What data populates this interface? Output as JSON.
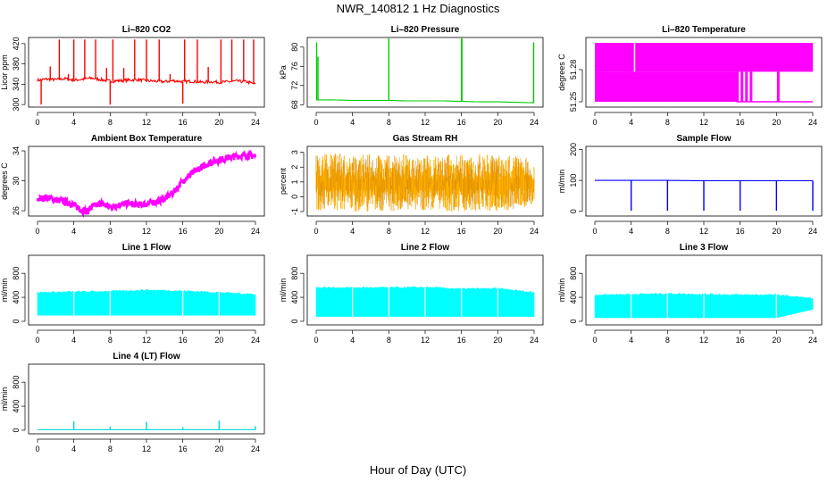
{
  "figure": {
    "title": "NWR_140812  1 Hz Diagnostics",
    "xlabel": "Hour of Day (UTC)"
  },
  "chart_data": [
    {
      "id": "co2",
      "type": "line",
      "title": "Li–820 CO2",
      "ylabel": "Licor ppm",
      "xlim": [
        0,
        24
      ],
      "xticks": [
        0,
        4,
        8,
        12,
        16,
        20,
        24
      ],
      "ylim": [
        295,
        432
      ],
      "yticks": [
        300,
        340,
        380,
        420
      ],
      "ytick_labels": [
        "300",
        "340",
        "380",
        "420"
      ],
      "color": "#ff0000",
      "fill": false,
      "series": [
        {
          "x": [
            0,
            1,
            2,
            3,
            4,
            5,
            6,
            7,
            8,
            9,
            10,
            11,
            12,
            13,
            14,
            15,
            16,
            17,
            18,
            19,
            20,
            21,
            22,
            23,
            24
          ],
          "y": [
            348,
            350,
            349,
            351,
            348,
            350,
            352,
            349,
            346,
            347,
            348,
            349,
            347,
            346,
            345,
            347,
            345,
            346,
            344,
            345,
            344,
            345,
            346,
            345,
            340
          ]
        }
      ],
      "spikes": [
        {
          "x": 0.4,
          "y": 300
        },
        {
          "x": 1.4,
          "y": 375
        },
        {
          "x": 2.4,
          "y": 428
        },
        {
          "x": 3.4,
          "y": 360
        },
        {
          "x": 4.0,
          "y": 428
        },
        {
          "x": 5.2,
          "y": 428
        },
        {
          "x": 6.4,
          "y": 428
        },
        {
          "x": 7.6,
          "y": 372
        },
        {
          "x": 8.0,
          "y": 300
        },
        {
          "x": 8.3,
          "y": 428
        },
        {
          "x": 9.5,
          "y": 372
        },
        {
          "x": 10.7,
          "y": 428
        },
        {
          "x": 12.0,
          "y": 428
        },
        {
          "x": 13.4,
          "y": 428
        },
        {
          "x": 14.6,
          "y": 360
        },
        {
          "x": 16.0,
          "y": 302
        },
        {
          "x": 16.2,
          "y": 428
        },
        {
          "x": 17.6,
          "y": 428
        },
        {
          "x": 18.8,
          "y": 374
        },
        {
          "x": 20.2,
          "y": 428
        },
        {
          "x": 21.4,
          "y": 428
        },
        {
          "x": 22.7,
          "y": 428
        },
        {
          "x": 23.8,
          "y": 428
        }
      ]
    },
    {
      "id": "pressure",
      "type": "line",
      "title": "Li–820 Pressure",
      "ylabel": "kPa",
      "xlim": [
        0,
        24
      ],
      "xticks": [
        0,
        4,
        8,
        12,
        16,
        20,
        24
      ],
      "ylim": [
        67.5,
        82
      ],
      "yticks": [
        68,
        72,
        76,
        80
      ],
      "ytick_labels": [
        "68",
        "72",
        "76",
        "80"
      ],
      "color": "#00cc00",
      "fill": false,
      "series": [
        {
          "x": [
            0,
            2,
            4,
            6,
            8,
            10,
            12,
            14,
            16,
            18,
            20,
            22,
            24
          ],
          "y": [
            69.0,
            69.0,
            68.9,
            68.9,
            68.9,
            68.8,
            68.8,
            68.8,
            68.7,
            68.6,
            68.6,
            68.5,
            68.4
          ]
        }
      ],
      "spikes": [
        {
          "x": 0.05,
          "y": 81
        },
        {
          "x": 0.2,
          "y": 78
        },
        {
          "x": 8.0,
          "y": 82
        },
        {
          "x": 16.0,
          "y": 82
        },
        {
          "x": 16.05,
          "y": 82
        },
        {
          "x": 23.95,
          "y": 81
        }
      ]
    },
    {
      "id": "licor-temp",
      "type": "area",
      "title": "Li–820 Temperature",
      "ylabel": "degrees C",
      "xlim": [
        0,
        24
      ],
      "xticks": [
        0,
        4,
        8,
        12,
        16,
        20,
        24
      ],
      "ylim": [
        51.245,
        51.31
      ],
      "yticks": [
        51.25,
        51.28
      ],
      "ytick_labels": [
        "51.25",
        "51.28"
      ],
      "color": "#ff00ff",
      "fill": true,
      "series": [
        {
          "x": [
            0,
            4.3,
            4.3,
            4.5,
            4.5,
            15.6,
            15.6,
            24
          ],
          "y_low": [
            51.25,
            51.25,
            51.25,
            51.25,
            51.25,
            51.25,
            51.25,
            51.25
          ],
          "y_high": [
            51.305,
            51.305,
            51.278,
            51.278,
            51.305,
            51.305,
            51.305,
            51.305
          ]
        }
      ],
      "partial": {
        "x_start": 15.6,
        "x_end": 24,
        "top_band": [
          51.278,
          51.305
        ]
      },
      "fragments": [
        {
          "x": 15.7,
          "y": 51.25
        },
        {
          "x": 16.2,
          "y": 51.25
        },
        {
          "x": 16.7,
          "y": 51.25
        },
        {
          "x": 17.2,
          "y": 51.25
        },
        {
          "x": 20.2,
          "y": 51.25
        }
      ]
    },
    {
      "id": "ambient-temp",
      "type": "line",
      "title": "Ambient Box Temperature",
      "ylabel": "degrees C",
      "xlim": [
        0,
        24
      ],
      "xticks": [
        0,
        4,
        8,
        12,
        16,
        20,
        24
      ],
      "ylim": [
        25.3,
        34.6
      ],
      "yticks": [
        26,
        30,
        34
      ],
      "ytick_labels": [
        "26",
        "30",
        "34"
      ],
      "colors": [
        "#ff00ff",
        "#ff00ff",
        "#ff00ff",
        "#ff00ff",
        "#ff00ff",
        "#ff00ff",
        "#ff00ff"
      ],
      "color": "#ff00ff",
      "fill": false,
      "thickness": 0.6,
      "series": [
        {
          "x": [
            0,
            1,
            2,
            3,
            4,
            5,
            5.5,
            6,
            7,
            8,
            9,
            10,
            11,
            12,
            13,
            14,
            15,
            16,
            17,
            18,
            19,
            20,
            21,
            22,
            23,
            24
          ],
          "y": [
            27.5,
            27.8,
            27.5,
            27.2,
            26.8,
            26.0,
            25.9,
            26.5,
            27.0,
            26.5,
            26.8,
            27.0,
            26.8,
            26.9,
            27.2,
            27.6,
            28.5,
            30.0,
            31.0,
            31.8,
            32.4,
            32.8,
            33.1,
            33.3,
            33.4,
            33.3
          ]
        }
      ]
    },
    {
      "id": "gas-rh",
      "type": "area",
      "title": "Gas Stream RH",
      "ylabel": "percent",
      "xlim": [
        0,
        24
      ],
      "xticks": [
        0,
        4,
        8,
        12,
        16,
        20,
        24
      ],
      "ylim": [
        -1.3,
        3.4
      ],
      "yticks": [
        -1,
        0,
        1,
        2,
        3
      ],
      "ytick_labels": [
        "-1",
        "0",
        "1",
        "2",
        "3"
      ],
      "color": "#ffb000",
      "fill": true,
      "noise": true,
      "series": [
        {
          "x": [
            0,
            2,
            4,
            6,
            8,
            10,
            12,
            14,
            16,
            18,
            20,
            22,
            24
          ],
          "y_low": [
            -0.9,
            -1.0,
            -1.0,
            -1.0,
            -1.0,
            -1.0,
            -0.9,
            -1.0,
            -1.0,
            -1.0,
            -1.0,
            -0.9,
            -0.5
          ],
          "y_high": [
            2.8,
            3.0,
            2.9,
            2.9,
            2.8,
            2.9,
            2.8,
            2.9,
            2.8,
            2.9,
            2.8,
            2.9,
            2.4
          ]
        }
      ]
    },
    {
      "id": "sample-flow",
      "type": "line",
      "title": "Sample Flow",
      "ylabel": "ml/min",
      "xlim": [
        0,
        24
      ],
      "xticks": [
        0,
        4,
        8,
        12,
        16,
        20,
        24
      ],
      "ylim": [
        -15,
        210
      ],
      "yticks": [
        0,
        100,
        200
      ],
      "ytick_labels": [
        "0",
        "100",
        "200"
      ],
      "color": "#0000ff",
      "fill": false,
      "series": [
        {
          "x": [
            0,
            4,
            8,
            12,
            16,
            20,
            24
          ],
          "y": [
            100,
            100,
            100,
            99,
            99,
            99,
            99
          ]
        }
      ],
      "spikes": [
        {
          "x": 4.0,
          "y": 2
        },
        {
          "x": 8.0,
          "y": 2
        },
        {
          "x": 12.0,
          "y": 2
        },
        {
          "x": 16.0,
          "y": 2
        },
        {
          "x": 20.0,
          "y": 2
        },
        {
          "x": 24.0,
          "y": 2
        }
      ]
    },
    {
      "id": "line1-flow",
      "type": "area",
      "title": "Line 1 Flow",
      "ylabel": "ml/min",
      "xlim": [
        0,
        24
      ],
      "xticks": [
        0,
        4,
        8,
        12,
        16,
        20,
        24
      ],
      "ylim": [
        -60,
        1100
      ],
      "yticks": [
        0,
        400,
        800
      ],
      "ytick_labels": [
        "0",
        "400",
        "800"
      ],
      "color": "#00ffff",
      "fill": true,
      "series": [
        {
          "x": [
            0,
            4,
            8,
            12,
            16,
            20,
            24
          ],
          "y_low": [
            100,
            100,
            100,
            100,
            100,
            100,
            100
          ],
          "y_high": [
            480,
            490,
            500,
            520,
            505,
            480,
            450
          ]
        }
      ],
      "gaps": [
        4.0,
        8.0,
        16.0,
        20.0
      ]
    },
    {
      "id": "line2-flow",
      "type": "area",
      "title": "Line 2 Flow",
      "ylabel": "ml/min",
      "xlim": [
        0,
        24
      ],
      "xticks": [
        0,
        4,
        8,
        12,
        16,
        20,
        24
      ],
      "ylim": [
        -60,
        1100
      ],
      "yticks": [
        0,
        400,
        800
      ],
      "ytick_labels": [
        "0",
        "400",
        "800"
      ],
      "color": "#00ffff",
      "fill": true,
      "series": [
        {
          "x": [
            0,
            4,
            8,
            12,
            16,
            20,
            24
          ],
          "y_low": [
            80,
            80,
            80,
            80,
            80,
            80,
            80
          ],
          "y_high": [
            560,
            560,
            560,
            565,
            540,
            545,
            480
          ]
        }
      ],
      "gaps": [
        4.0,
        8.0,
        12.0,
        16.0,
        20.0
      ]
    },
    {
      "id": "line3-flow",
      "type": "area",
      "title": "Line 3 Flow",
      "ylabel": "ml/min",
      "xlim": [
        0,
        24
      ],
      "xticks": [
        0,
        4,
        8,
        12,
        16,
        20,
        24
      ],
      "ylim": [
        -60,
        1100
      ],
      "yticks": [
        0,
        400,
        800
      ],
      "ytick_labels": [
        "0",
        "400",
        "800"
      ],
      "color": "#00ffff",
      "fill": true,
      "series": [
        {
          "x": [
            0,
            4,
            8,
            12,
            16,
            20,
            24
          ],
          "y_low": [
            60,
            60,
            60,
            60,
            60,
            60,
            200
          ],
          "y_high": [
            440,
            450,
            460,
            450,
            440,
            440,
            380
          ]
        }
      ],
      "gaps": [
        4.0,
        8.0,
        12.0,
        20.0
      ]
    },
    {
      "id": "line4-flow",
      "type": "line",
      "title": "Line 4 (LT) Flow",
      "ylabel": "ml/min",
      "xlim": [
        0,
        24
      ],
      "xticks": [
        0,
        4,
        8,
        12,
        16,
        20,
        24
      ],
      "ylim": [
        -60,
        1100
      ],
      "yticks": [
        0,
        400,
        800
      ],
      "ytick_labels": [
        "0",
        "400",
        "800"
      ],
      "color": "#00d8d8",
      "fill": false,
      "series": [
        {
          "x": [
            0,
            4,
            8,
            12,
            16,
            20,
            24
          ],
          "y": [
            10,
            10,
            10,
            10,
            10,
            10,
            10
          ]
        }
      ],
      "spikes": [
        {
          "x": 4.0,
          "y": 150
        },
        {
          "x": 8.0,
          "y": 60
        },
        {
          "x": 12.0,
          "y": 140
        },
        {
          "x": 16.0,
          "y": 50
        },
        {
          "x": 20.0,
          "y": 160
        },
        {
          "x": 24.0,
          "y": 70
        }
      ]
    }
  ]
}
